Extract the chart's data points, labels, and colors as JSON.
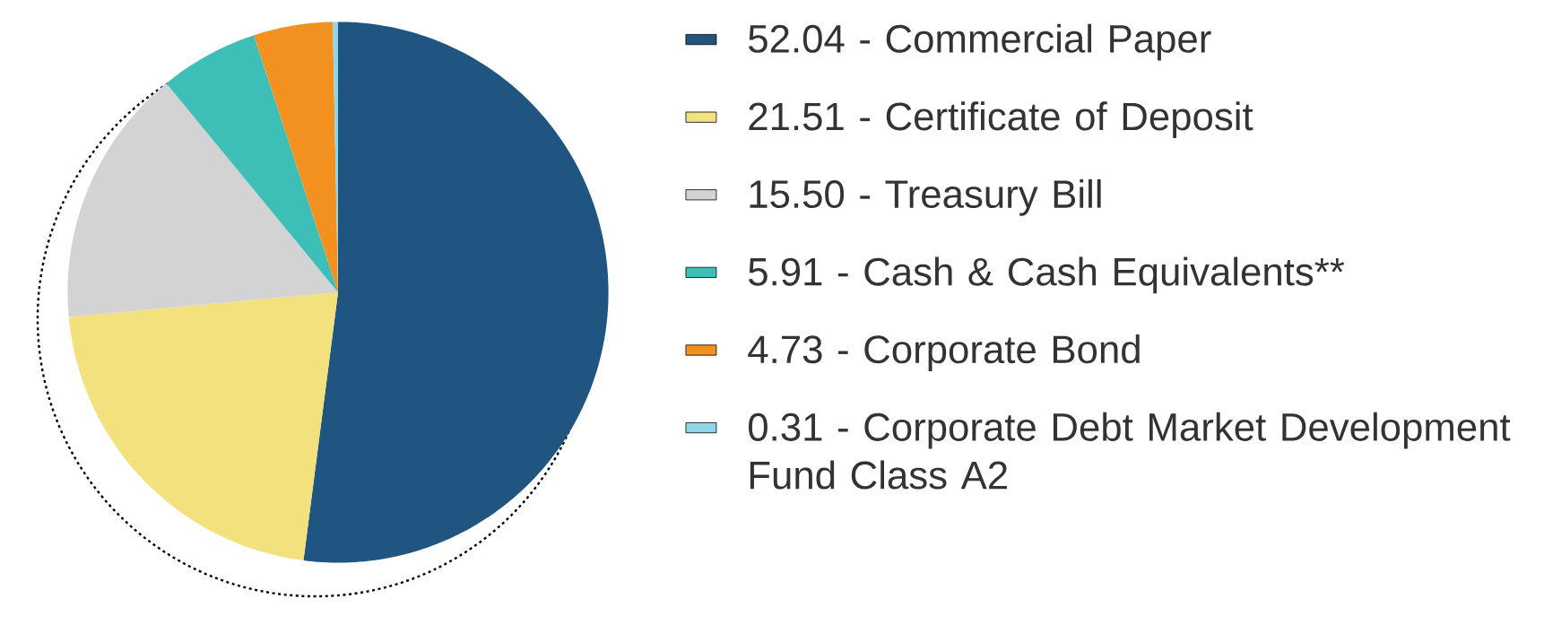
{
  "chart_data": {
    "type": "pie",
    "categories": [
      "52.04 - Commercial Paper",
      "21.51 - Certificate of Deposit",
      "15.50 - Treasury Bill",
      "5.91 - Cash & Cash Equivalents**",
      "4.73 - Corporate Bond",
      "0.31 - Corporate Debt Market Development Fund Class A2"
    ],
    "values": [
      52.04,
      21.51,
      15.5,
      5.91,
      4.73,
      0.31
    ],
    "colors": [
      "#1f5580",
      "#f3e17e",
      "#d3d3d3",
      "#3dbfb8",
      "#f39120",
      "#8fd6e8"
    ],
    "legend": "right"
  }
}
